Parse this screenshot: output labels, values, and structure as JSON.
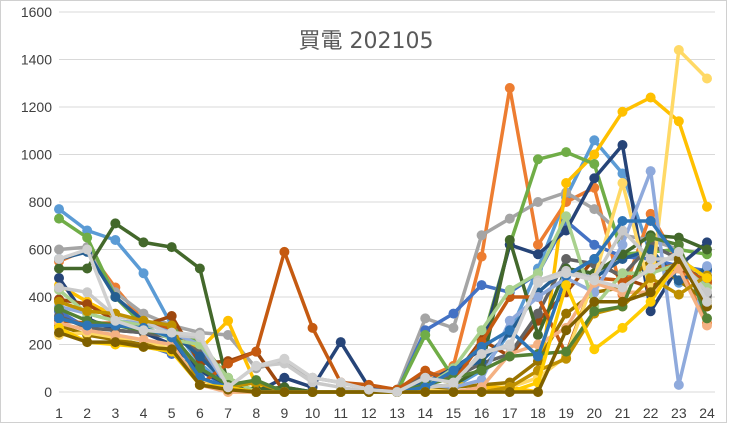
{
  "chart_data": {
    "type": "line",
    "title": "買電 202105",
    "xlabel": "",
    "ylabel": "",
    "x": [
      1,
      2,
      3,
      4,
      5,
      6,
      7,
      8,
      9,
      10,
      11,
      12,
      13,
      14,
      15,
      16,
      17,
      18,
      19,
      20,
      21,
      22,
      23,
      24
    ],
    "ylim": [
      0,
      1600
    ],
    "yticks": [
      0,
      200,
      400,
      600,
      800,
      1000,
      1200,
      1400,
      1600
    ],
    "grid": true,
    "legend": "none",
    "series": [
      {
        "color": "#5B9BD5",
        "values": [
          770,
          680,
          640,
          500,
          280,
          120,
          20,
          0,
          0,
          0,
          0,
          0,
          0,
          0,
          20,
          90,
          250,
          520,
          820,
          1060,
          920,
          580,
          460,
          520
        ]
      },
      {
        "color": "#ED7D31",
        "values": [
          550,
          600,
          440,
          300,
          250,
          60,
          10,
          0,
          0,
          0,
          0,
          0,
          0,
          60,
          110,
          570,
          1280,
          620,
          800,
          860,
          410,
          750,
          540,
          290
        ]
      },
      {
        "color": "#A5A5A5",
        "values": [
          600,
          610,
          420,
          330,
          280,
          250,
          240,
          100,
          130,
          60,
          40,
          10,
          10,
          310,
          270,
          660,
          730,
          800,
          840,
          770,
          660,
          640,
          600,
          400
        ]
      },
      {
        "color": "#FFC000",
        "values": [
          450,
          380,
          320,
          300,
          250,
          180,
          300,
          30,
          0,
          0,
          0,
          0,
          0,
          60,
          40,
          20,
          20,
          0,
          880,
          1000,
          1180,
          1240,
          1140,
          780
        ]
      },
      {
        "color": "#4472C4",
        "values": [
          340,
          270,
          220,
          200,
          160,
          90,
          20,
          0,
          0,
          0,
          0,
          0,
          0,
          260,
          330,
          450,
          420,
          500,
          720,
          620,
          570,
          560,
          530,
          510
        ]
      },
      {
        "color": "#70AD47",
        "values": [
          730,
          650,
          400,
          280,
          270,
          210,
          60,
          0,
          0,
          0,
          0,
          0,
          0,
          240,
          60,
          200,
          620,
          980,
          1010,
          960,
          580,
          590,
          600,
          580
        ]
      },
      {
        "color": "#264478",
        "values": [
          480,
          310,
          260,
          250,
          200,
          90,
          30,
          0,
          60,
          20,
          210,
          20,
          0,
          40,
          100,
          180,
          620,
          580,
          680,
          900,
          1040,
          340,
          530,
          630
        ]
      },
      {
        "color": "#9E480E",
        "values": [
          390,
          370,
          300,
          280,
          320,
          120,
          130,
          170,
          0,
          0,
          0,
          0,
          0,
          50,
          60,
          220,
          150,
          300,
          420,
          560,
          480,
          440,
          520,
          470
        ]
      },
      {
        "color": "#636363",
        "values": [
          320,
          270,
          260,
          250,
          230,
          170,
          40,
          0,
          0,
          0,
          0,
          0,
          0,
          80,
          60,
          120,
          160,
          330,
          560,
          540,
          490,
          620,
          560,
          410
        ]
      },
      {
        "color": "#997300",
        "values": [
          280,
          240,
          220,
          200,
          180,
          60,
          10,
          0,
          0,
          0,
          0,
          0,
          0,
          10,
          20,
          30,
          40,
          130,
          330,
          420,
          440,
          560,
          470,
          380
        ]
      },
      {
        "color": "#255E91",
        "values": [
          560,
          590,
          400,
          300,
          250,
          150,
          30,
          0,
          20,
          0,
          0,
          0,
          0,
          40,
          90,
          130,
          250,
          420,
          520,
          480,
          560,
          600,
          470,
          520
        ]
      },
      {
        "color": "#43682B",
        "values": [
          520,
          520,
          710,
          630,
          610,
          520,
          30,
          10,
          20,
          0,
          0,
          0,
          0,
          20,
          30,
          100,
          640,
          240,
          520,
          500,
          580,
          660,
          650,
          600
        ]
      },
      {
        "color": "#C55A11",
        "values": [
          300,
          290,
          290,
          280,
          270,
          30,
          120,
          170,
          590,
          270,
          40,
          30,
          10,
          90,
          40,
          210,
          400,
          400,
          160,
          480,
          470,
          510,
          540,
          460
        ]
      },
      {
        "color": "#FFD966",
        "values": [
          240,
          250,
          230,
          220,
          180,
          60,
          0,
          0,
          0,
          0,
          0,
          0,
          0,
          10,
          0,
          0,
          20,
          60,
          150,
          480,
          880,
          420,
          1440,
          1320
        ]
      },
      {
        "color": "#8FAADC",
        "values": [
          360,
          330,
          300,
          290,
          250,
          200,
          20,
          0,
          0,
          0,
          0,
          0,
          0,
          30,
          20,
          50,
          300,
          400,
          480,
          420,
          620,
          930,
          30,
          530
        ]
      },
      {
        "color": "#A9D18E",
        "values": [
          430,
          330,
          300,
          280,
          220,
          200,
          60,
          0,
          0,
          0,
          0,
          0,
          0,
          20,
          100,
          260,
          430,
          500,
          740,
          360,
          500,
          500,
          540,
          440
        ]
      },
      {
        "color": "#F4B183",
        "values": [
          290,
          260,
          240,
          220,
          200,
          30,
          0,
          0,
          0,
          0,
          0,
          0,
          0,
          0,
          0,
          20,
          160,
          200,
          270,
          460,
          420,
          420,
          520,
          280
        ]
      },
      {
        "color": "#C9C9C9",
        "values": [
          440,
          420,
          320,
          300,
          240,
          230,
          20,
          110,
          120,
          40,
          20,
          0,
          0,
          20,
          30,
          170,
          190,
          470,
          510,
          480,
          680,
          560,
          560,
          420
        ]
      },
      {
        "color": "#BF9000",
        "values": [
          380,
          340,
          330,
          300,
          280,
          30,
          20,
          40,
          0,
          0,
          0,
          0,
          0,
          0,
          0,
          0,
          20,
          90,
          140,
          330,
          360,
          480,
          410,
          490
        ]
      },
      {
        "color": "#548235",
        "values": [
          350,
          300,
          280,
          260,
          240,
          100,
          30,
          50,
          0,
          0,
          0,
          0,
          0,
          30,
          60,
          90,
          150,
          160,
          170,
          340,
          360,
          650,
          620,
          310
        ]
      },
      {
        "color": "#2E75B6",
        "values": [
          310,
          280,
          280,
          270,
          230,
          60,
          20,
          0,
          0,
          0,
          0,
          0,
          0,
          20,
          90,
          190,
          260,
          150,
          490,
          560,
          720,
          720,
          560,
          480
        ]
      },
      {
        "color": "#FFCC00",
        "values": [
          270,
          210,
          200,
          190,
          170,
          30,
          20,
          0,
          0,
          0,
          0,
          0,
          0,
          0,
          0,
          0,
          0,
          40,
          450,
          180,
          270,
          380,
          560,
          480
        ]
      },
      {
        "color": "#7F6000",
        "values": [
          250,
          210,
          210,
          190,
          180,
          30,
          10,
          0,
          0,
          0,
          0,
          0,
          0,
          0,
          0,
          0,
          0,
          0,
          260,
          380,
          380,
          420,
          560,
          360
        ]
      },
      {
        "color": "#D0D0D0",
        "values": [
          560,
          600,
          300,
          260,
          250,
          240,
          20,
          110,
          140,
          60,
          40,
          10,
          0,
          60,
          40,
          160,
          200,
          460,
          500,
          470,
          440,
          520,
          590,
          380
        ]
      }
    ]
  }
}
